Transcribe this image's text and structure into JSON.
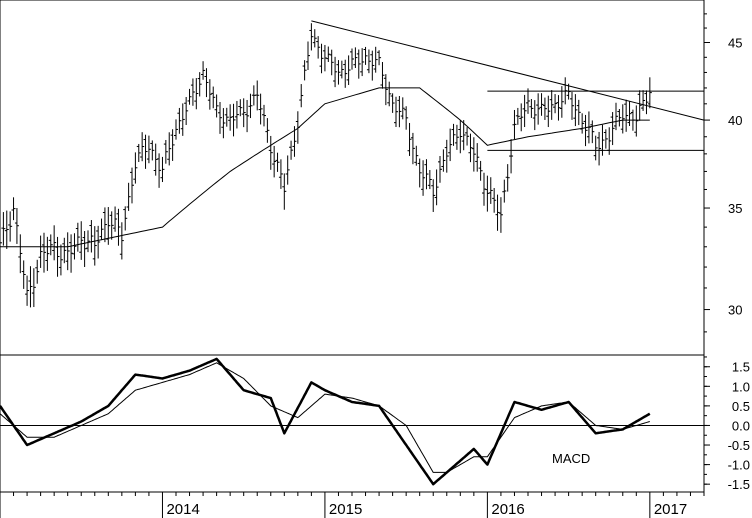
{
  "chart_data": [
    {
      "type": "ohlc",
      "panel": "price",
      "title": "",
      "y_ticks": [
        30,
        35,
        40,
        45
      ],
      "ylim": [
        28,
        48
      ],
      "log_scale": true,
      "x_tick_labels": [
        "2014",
        "2015",
        "2016",
        "2017"
      ],
      "xlim": [
        "2013-01",
        "2017-05"
      ],
      "grid": false,
      "series": [
        {
          "kind": "weekly-bars-approx-close",
          "dates": [
            "2013-01",
            "2013-02",
            "2013-03",
            "2013-04",
            "2013-05",
            "2013-06",
            "2013-07",
            "2013-08",
            "2013-09",
            "2013-10",
            "2013-11",
            "2013-12",
            "2014-01",
            "2014-02",
            "2014-03",
            "2014-04",
            "2014-05",
            "2014-06",
            "2014-07",
            "2014-08",
            "2014-09",
            "2014-10",
            "2014-11",
            "2014-12",
            "2015-01",
            "2015-02",
            "2015-03",
            "2015-04",
            "2015-05",
            "2015-06",
            "2015-07",
            "2015-08",
            "2015-09",
            "2015-10",
            "2015-11",
            "2015-12",
            "2016-01",
            "2016-02",
            "2016-03",
            "2016-04",
            "2016-05",
            "2016-06",
            "2016-07",
            "2016-08",
            "2016-09",
            "2016-10",
            "2016-11",
            "2016-12",
            "2017-01"
          ],
          "close": [
            33.0,
            35.0,
            30.5,
            32.5,
            33.0,
            32.5,
            33.5,
            33.0,
            34.5,
            33.5,
            37.5,
            38.5,
            37.0,
            39.5,
            41.0,
            43.0,
            40.5,
            40.0,
            40.5,
            41.5,
            38.5,
            36.0,
            40.0,
            45.5,
            44.0,
            43.0,
            43.5,
            44.0,
            43.5,
            41.0,
            40.0,
            37.0,
            36.0,
            38.0,
            39.5,
            38.0,
            36.0,
            34.5,
            39.5,
            41.0,
            40.5,
            41.0,
            41.5,
            40.0,
            38.5,
            39.0,
            40.5,
            40.0,
            42.0
          ]
        },
        {
          "kind": "moving-average",
          "dates": [
            "2013-01",
            "2013-06",
            "2014-01",
            "2014-06",
            "2014-11",
            "2015-01",
            "2015-05",
            "2015-08",
            "2015-11",
            "2016-01",
            "2016-04",
            "2016-08",
            "2016-11",
            "2017-01"
          ],
          "values": [
            33.0,
            33.0,
            34.0,
            37.0,
            39.5,
            41.0,
            42.0,
            42.0,
            40.0,
            38.5,
            39.0,
            39.5,
            40.0,
            40.0
          ]
        }
      ],
      "trendlines": [
        {
          "kind": "descending-resistance",
          "from": [
            "2014-12",
            46.5
          ],
          "to": [
            "2017-05",
            40.0
          ]
        },
        {
          "kind": "range-top",
          "from": [
            "2016-01",
            41.8
          ],
          "to": [
            "2017-05",
            41.8
          ]
        },
        {
          "kind": "range-bottom",
          "from": [
            "2016-01",
            38.2
          ],
          "to": [
            "2017-05",
            38.2
          ]
        }
      ]
    },
    {
      "type": "line",
      "panel": "indicator",
      "label": "MACD",
      "y_ticks": [
        "1.5",
        "1.0",
        "0.5",
        "0.0",
        "-0.5",
        "-1.0",
        "-1.5"
      ],
      "y_tick_values": [
        1.5,
        1.0,
        0.5,
        0.0,
        -0.5,
        -1.0,
        -1.5
      ],
      "ylim": [
        -1.7,
        1.8
      ],
      "zero_line": true,
      "series": [
        {
          "kind": "macd",
          "dates": [
            "2013-01",
            "2013-03",
            "2013-05",
            "2013-07",
            "2013-09",
            "2013-11",
            "2014-01",
            "2014-03",
            "2014-05",
            "2014-07",
            "2014-09",
            "2014-10",
            "2014-12",
            "2015-01",
            "2015-03",
            "2015-05",
            "2015-07",
            "2015-09",
            "2015-10",
            "2015-12",
            "2016-01",
            "2016-03",
            "2016-05",
            "2016-07",
            "2016-09",
            "2016-11",
            "2017-01"
          ],
          "values": [
            0.5,
            -0.5,
            -0.2,
            0.1,
            0.5,
            1.3,
            1.2,
            1.4,
            1.7,
            0.9,
            0.7,
            -0.2,
            1.1,
            0.9,
            0.6,
            0.5,
            -0.5,
            -1.5,
            -1.2,
            -0.6,
            -1.0,
            0.6,
            0.4,
            0.6,
            -0.2,
            -0.1,
            0.3
          ]
        },
        {
          "kind": "signal",
          "dates": [
            "2013-01",
            "2013-03",
            "2013-05",
            "2013-07",
            "2013-09",
            "2013-11",
            "2014-01",
            "2014-03",
            "2014-05",
            "2014-07",
            "2014-09",
            "2014-11",
            "2015-01",
            "2015-03",
            "2015-05",
            "2015-07",
            "2015-09",
            "2015-10",
            "2015-12",
            "2016-01",
            "2016-03",
            "2016-05",
            "2016-07",
            "2016-09",
            "2016-11",
            "2017-01"
          ],
          "values": [
            0.3,
            -0.3,
            -0.3,
            0.0,
            0.3,
            0.9,
            1.1,
            1.3,
            1.6,
            1.2,
            0.5,
            0.2,
            0.8,
            0.7,
            0.5,
            0.0,
            -1.2,
            -1.2,
            -0.8,
            -0.8,
            0.2,
            0.5,
            0.6,
            0.0,
            -0.1,
            0.1
          ]
        }
      ]
    }
  ]
}
